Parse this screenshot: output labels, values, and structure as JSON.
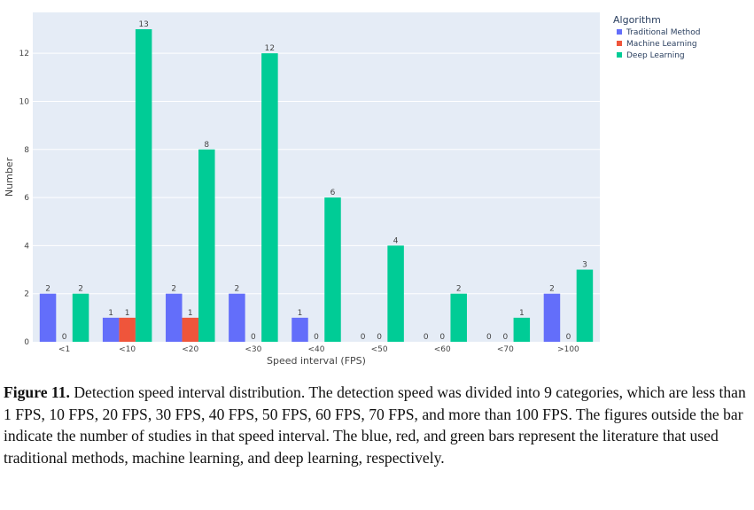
{
  "chart_data": {
    "type": "bar",
    "title": "",
    "xlabel": "Speed interval (FPS)",
    "ylabel": "Number",
    "ylim": [
      0,
      13.7
    ],
    "yticks": [
      0,
      2,
      4,
      6,
      8,
      10,
      12
    ],
    "grid": true,
    "categories": [
      "<1",
      "<10",
      "<20",
      "<30",
      "<40",
      "<50",
      "<60",
      "<70",
      ">100"
    ],
    "legend": {
      "title": "Algorithm",
      "position": "top-right"
    },
    "series": [
      {
        "name": "Traditional Method",
        "color": "#636efa",
        "values": [
          2,
          1,
          2,
          2,
          1,
          0,
          0,
          0,
          2
        ]
      },
      {
        "name": "Machine Learning",
        "color": "#ef553b",
        "values": [
          0,
          1,
          1,
          0,
          0,
          0,
          0,
          0,
          0
        ]
      },
      {
        "name": "Deep Learning",
        "color": "#00cc96",
        "values": [
          2,
          13,
          8,
          12,
          6,
          4,
          2,
          1,
          3
        ]
      }
    ],
    "plot_background": "#e5ecf6"
  },
  "caption": {
    "label": "Figure 11.",
    "text": " Detection speed interval distribution. The detection speed was divided into 9 categories, which are less than 1 FPS, 10 FPS, 20 FPS, 30 FPS, 40 FPS, 50 FPS, 60 FPS, 70 FPS, and more than 100 FPS. The figures outside the bar indicate the number of studies in that speed interval. The blue, red, and green bars represent the literature that used traditional methods, machine learning, and deep learning, respectively."
  }
}
